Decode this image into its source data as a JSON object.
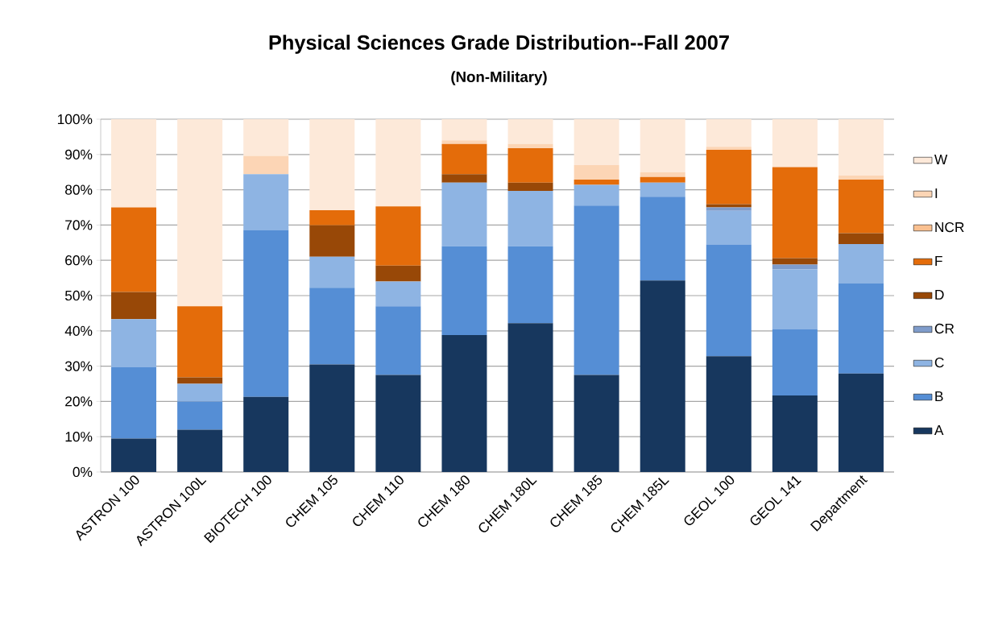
{
  "chart_data": {
    "type": "bar",
    "stacked": true,
    "title": "Physical Sciences Grade Distribution--Fall 2007",
    "subtitle": "(Non-Military)",
    "categories": [
      "ASTRON 100",
      "ASTRON 100L",
      "BIOTECH 100",
      "CHEM 105",
      "CHEM 110",
      "CHEM 180",
      "CHEM 180L",
      "CHEM 185",
      "CHEM 185L",
      "GEOL 100",
      "GEOL 141",
      "Department"
    ],
    "series": [
      {
        "name": "A",
        "color": "#17375e",
        "values": [
          9.5,
          12,
          21.3,
          30.5,
          27.5,
          38.8,
          42.2,
          27.5,
          54.3,
          32.8,
          21.7,
          27.9
        ]
      },
      {
        "name": "B",
        "color": "#558ed5",
        "values": [
          20.2,
          8,
          47.3,
          21.7,
          19.5,
          25.2,
          21.8,
          48,
          23.7,
          31.7,
          18.8,
          25.5
        ]
      },
      {
        "name": "C",
        "color": "#8eb4e3",
        "values": [
          13.6,
          5,
          15.8,
          8.8,
          7,
          18,
          15.7,
          5.9,
          4,
          9.5,
          16.9,
          11.2
        ]
      },
      {
        "name": "CR",
        "color": "#7f9ccb",
        "values": [
          0,
          0,
          0,
          0,
          0,
          0,
          0,
          0,
          0,
          1,
          1.4,
          0
        ]
      },
      {
        "name": "D",
        "color": "#984807",
        "values": [
          7.7,
          1.8,
          0,
          8.9,
          4.5,
          2.4,
          2.3,
          0,
          0,
          0.9,
          1.8,
          3.1
        ]
      },
      {
        "name": "F",
        "color": "#e46c0a",
        "values": [
          24,
          20.2,
          0,
          4.3,
          16.8,
          8.6,
          9.8,
          1.5,
          1.6,
          15.4,
          25.8,
          15.2
        ]
      },
      {
        "name": "NCR",
        "color": "#fac090",
        "values": [
          0,
          0,
          0,
          0,
          0,
          0,
          0,
          0,
          0,
          0,
          0,
          0
        ]
      },
      {
        "name": "I",
        "color": "#fcd5b5",
        "values": [
          0,
          0,
          5.2,
          0,
          0,
          1,
          1.2,
          4.1,
          1.4,
          0.9,
          0,
          1.1
        ]
      },
      {
        "name": "W",
        "color": "#fde9d9",
        "values": [
          25,
          53,
          10.4,
          25.8,
          24.7,
          6,
          7,
          13,
          15,
          7.8,
          13.6,
          16
        ]
      }
    ],
    "ylim": [
      0,
      100
    ],
    "yticks": [
      {
        "value": 0,
        "label": "0%"
      },
      {
        "value": 10,
        "label": "10%"
      },
      {
        "value": 20,
        "label": "20%"
      },
      {
        "value": 30,
        "label": "30%"
      },
      {
        "value": 40,
        "label": "40%"
      },
      {
        "value": 50,
        "label": "50%"
      },
      {
        "value": 60,
        "label": "60%"
      },
      {
        "value": 70,
        "label": "70%"
      },
      {
        "value": 80,
        "label": "80%"
      },
      {
        "value": 90,
        "label": "90%"
      },
      {
        "value": 100,
        "label": "100%"
      }
    ],
    "grid": "y",
    "legend": "right"
  }
}
